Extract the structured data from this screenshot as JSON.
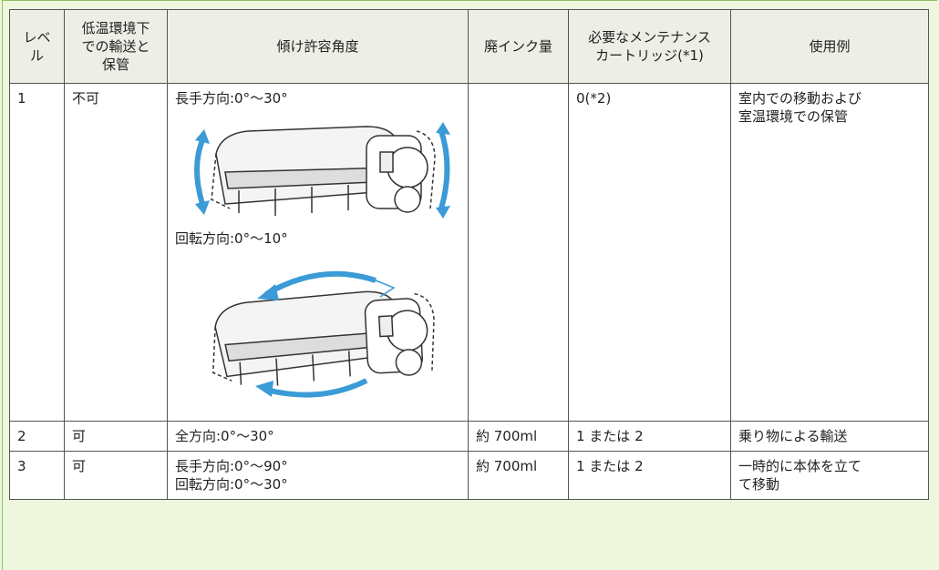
{
  "table": {
    "header": [
      [
        "レベ",
        "ル"
      ],
      [
        "低温環境下",
        "での輸送と",
        "保管"
      ],
      [
        "傾け許容角度"
      ],
      [
        "廃インク量"
      ],
      [
        "必要なメンテナンス",
        "カートリッジ(*1)"
      ],
      [
        "使用例"
      ]
    ],
    "rows": [
      [
        [
          "1"
        ],
        [
          "不可"
        ],
        [
          "長手方向:0°〜30°",
          "回転方向:0°〜10°"
        ],
        [],
        [
          "0(*2)"
        ],
        [
          "室内での移動および",
          "室温環境での保管"
        ]
      ],
      [
        [
          "2"
        ],
        [
          "可"
        ],
        [
          "全方向:0°〜30°"
        ],
        [
          "約 700ml"
        ],
        [
          "1 または 2"
        ],
        [
          "乗り物による輸送"
        ]
      ],
      [
        [
          "3"
        ],
        [
          "可"
        ],
        [
          "長手方向:0°〜90°",
          "回転方向:0°〜30°"
        ],
        [
          "約 700ml"
        ],
        [
          "1 または 2"
        ],
        [
          "一時的に本体を立て",
          "て移動"
        ]
      ]
    ]
  }
}
